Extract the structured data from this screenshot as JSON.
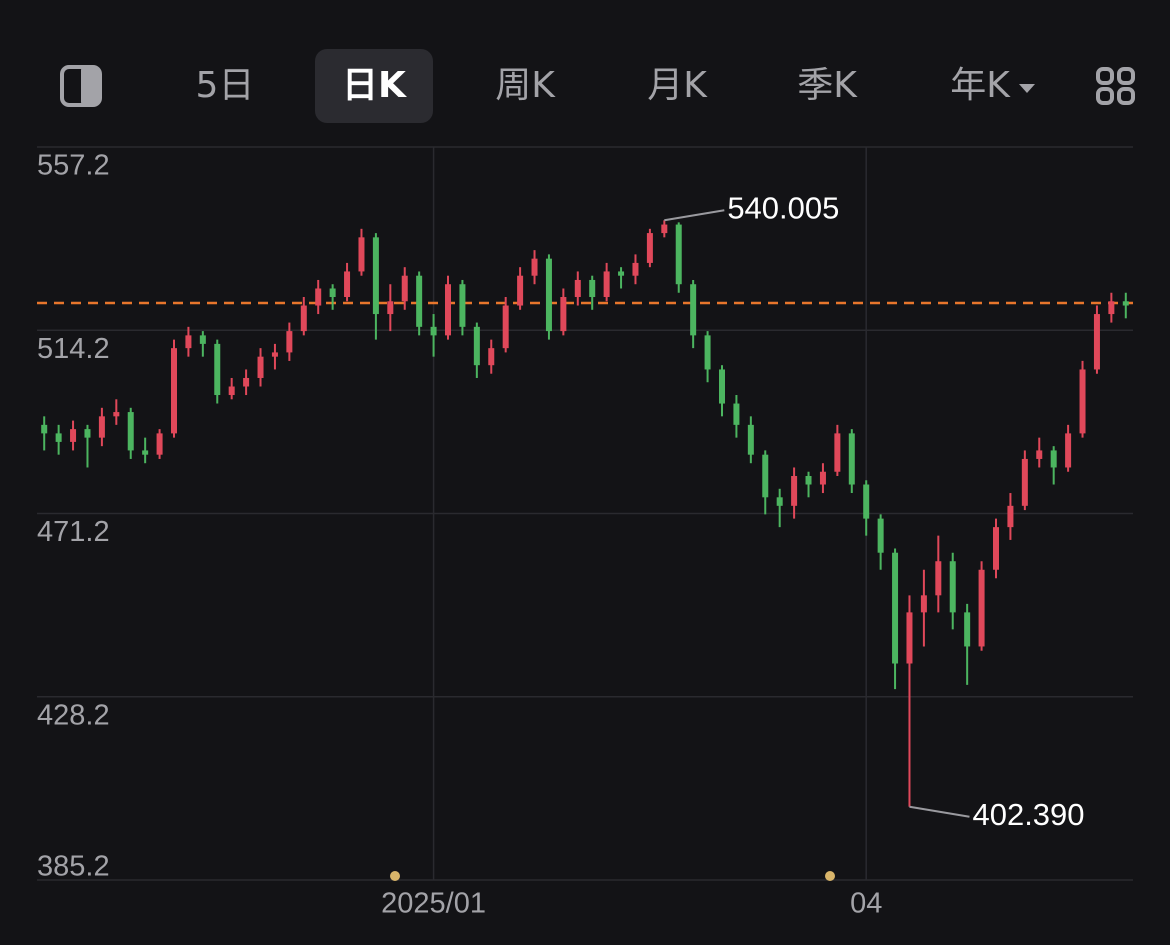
{
  "header": {
    "tabs": [
      "5日",
      "日K",
      "周K",
      "月K",
      "季K",
      "年K"
    ]
  },
  "chart_data": {
    "type": "candlestick",
    "categories": [
      null,
      null,
      null,
      null,
      null,
      null,
      null,
      null,
      null,
      null,
      null,
      null,
      null,
      null,
      null,
      null,
      null,
      null,
      null,
      null,
      null,
      null,
      null,
      null,
      null,
      null,
      null,
      "2025/01",
      null,
      null,
      null,
      null,
      null,
      null,
      null,
      null,
      null,
      null,
      null,
      null,
      null,
      null,
      null,
      null,
      null,
      null,
      null,
      null,
      null,
      null,
      null,
      null,
      null,
      null,
      null,
      null,
      null,
      "04",
      null,
      null,
      null,
      null,
      null,
      null,
      null,
      null,
      null,
      null,
      null,
      null,
      null,
      null,
      null,
      null,
      null,
      null
    ],
    "series": [
      {
        "up_color": "#e0485a",
        "down_color": "#4cb560",
        "open": [
          492,
          490,
          488,
          491,
          489,
          494,
          495,
          486,
          485,
          490,
          510,
          513,
          511,
          499,
          501,
          503,
          508,
          509,
          514,
          520,
          524,
          522,
          528,
          536,
          518,
          521,
          527,
          515,
          513,
          525,
          515,
          506,
          510,
          520,
          527,
          531,
          514,
          522,
          526,
          522,
          528,
          527,
          530,
          537,
          539,
          525,
          513,
          505,
          497,
          492,
          485,
          475,
          473,
          480,
          478,
          481,
          490,
          478,
          470,
          462,
          436,
          448,
          452,
          460,
          448,
          440,
          458,
          468,
          473,
          484,
          486,
          482,
          490,
          505,
          518,
          521
        ],
        "high": [
          494,
          492,
          493,
          492,
          496,
          498,
          496,
          489,
          491,
          512,
          515,
          514,
          512,
          503,
          505,
          510,
          511,
          516,
          522,
          526,
          525,
          530,
          538,
          537,
          525,
          529,
          528,
          518,
          527,
          526,
          516,
          512,
          522,
          529,
          533,
          532,
          524,
          528,
          527,
          530,
          529,
          532,
          538,
          540.005,
          539.5,
          526,
          514,
          506,
          499,
          494,
          486,
          477,
          482,
          481,
          483,
          492,
          491,
          479,
          471,
          463,
          452,
          458,
          466,
          462,
          450,
          460,
          470,
          476,
          486,
          489,
          487,
          492,
          507,
          520,
          523,
          523
        ],
        "low": [
          486,
          485,
          486,
          482,
          487,
          492,
          484,
          483,
          484,
          489,
          508,
          508,
          497,
          498,
          499,
          501,
          505,
          507,
          513,
          518,
          519,
          521,
          527,
          512,
          514,
          519,
          513,
          508,
          512,
          513,
          503,
          504,
          509,
          519,
          525,
          512,
          513,
          520,
          519,
          521,
          524,
          525,
          529,
          536,
          523,
          510,
          502,
          494,
          489,
          483,
          471,
          468,
          470,
          475,
          476,
          480,
          476,
          466,
          458,
          430,
          402.39,
          440,
          448,
          444,
          431,
          439,
          456,
          465,
          472,
          482,
          478,
          481,
          489,
          504,
          516,
          517
        ],
        "close": [
          490,
          488,
          491,
          489,
          494,
          495,
          486,
          485,
          490,
          510,
          513,
          511,
          499,
          501,
          503,
          508,
          509,
          514,
          520,
          524,
          522,
          528,
          536,
          518,
          521,
          527,
          515,
          513,
          525,
          515,
          506,
          510,
          520,
          527,
          531,
          514,
          522,
          526,
          522,
          528,
          527,
          530,
          537,
          539,
          525,
          513,
          505,
          497,
          492,
          485,
          475,
          473,
          480,
          478,
          481,
          490,
          478,
          470,
          462,
          436,
          448,
          452,
          460,
          448,
          440,
          458,
          468,
          473,
          484,
          486,
          482,
          490,
          505,
          518,
          521,
          520
        ]
      }
    ],
    "ylim": [
      385.2,
      557.2
    ],
    "yticks": [
      385.2,
      428.2,
      471.2,
      514.2,
      557.2
    ],
    "grid": true,
    "reference_line": {
      "value": 520.6,
      "color": "#e8762c"
    },
    "annotations": [
      {
        "value": 540.005
      },
      {
        "value": 402.39,
        "label": "402.390"
      }
    ]
  }
}
